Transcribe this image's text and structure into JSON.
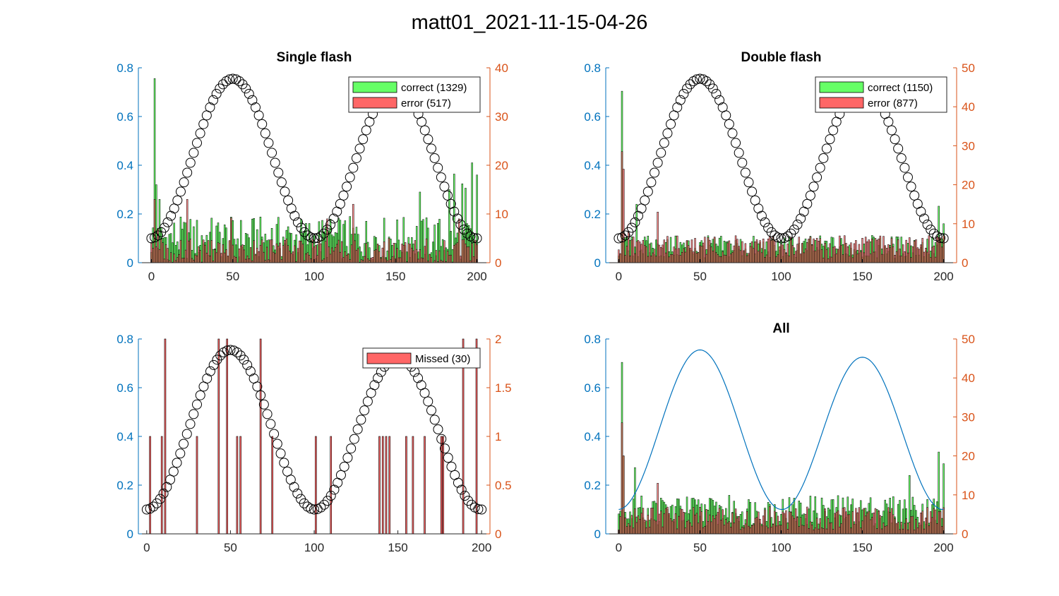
{
  "figure": {
    "title": "matt01_2021-11-15-04-26"
  },
  "colors": {
    "left_axis": "#0072BD",
    "right_axis": "#D95319",
    "correct": "#66FF66",
    "error": "#FF6666",
    "line": "#0072BD",
    "bar_edge": "#000000"
  },
  "chart_data": [
    {
      "id": "single",
      "type": "bar",
      "title": "Single flash",
      "xlim": [
        -8,
        208
      ],
      "xticks": [
        0,
        50,
        100,
        150,
        200
      ],
      "left_ylim": [
        0,
        0.8
      ],
      "left_yticks": [
        "0",
        "0.2",
        "0.4",
        "0.6",
        "0.8"
      ],
      "right_ylim": [
        0,
        40
      ],
      "right_yticks": [
        "0",
        "10",
        "20",
        "30",
        "40"
      ],
      "overlay": "markers",
      "legend_location": "top-right",
      "legend": [
        {
          "label": "correct (1329)",
          "color": "#66FF66"
        },
        {
          "label": "error (517)",
          "color": "#FF6666"
        }
      ],
      "spikes": {
        "correct": [
          [
            2,
            37.8
          ],
          [
            3,
            16
          ],
          [
            5,
            13
          ],
          [
            197,
            20.5
          ],
          [
            200,
            18
          ],
          [
            193,
            15.3
          ],
          [
            191,
            16.2
          ],
          [
            183,
            15
          ],
          [
            165,
            14.5
          ],
          [
            186,
            18.2
          ]
        ],
        "error": [
          [
            2,
            13
          ],
          [
            4,
            7
          ],
          [
            22,
            13
          ],
          [
            49,
            9.2
          ],
          [
            108,
            9
          ],
          [
            124,
            12
          ],
          [
            189,
            9
          ]
        ]
      },
      "base": {
        "correct": 5,
        "correct_amp": 4.5,
        "error": 2.5,
        "error_amp": 2.5
      }
    },
    {
      "id": "double",
      "type": "bar",
      "title": "Double flash",
      "xlim": [
        -8,
        208
      ],
      "xticks": [
        0,
        50,
        100,
        150,
        200
      ],
      "left_ylim": [
        0,
        0.8
      ],
      "left_yticks": [
        "0",
        "0.2",
        "0.4",
        "0.6",
        "0.8"
      ],
      "right_ylim": [
        0,
        50
      ],
      "right_yticks": [
        "0",
        "10",
        "20",
        "30",
        "40",
        "50"
      ],
      "overlay": "markers",
      "legend_location": "top-right",
      "legend": [
        {
          "label": "correct (1150)",
          "color": "#66FF66"
        },
        {
          "label": "error (877)",
          "color": "#FF6666"
        }
      ],
      "spikes": {
        "correct": [
          [
            2,
            44
          ],
          [
            11,
            15
          ],
          [
            197,
            14.5
          ],
          [
            200,
            10
          ]
        ],
        "error": [
          [
            2,
            28.5
          ],
          [
            3,
            24
          ],
          [
            6,
            8
          ],
          [
            24,
            13
          ]
        ]
      },
      "base": {
        "correct": 4,
        "correct_amp": 3,
        "error": 4,
        "error_amp": 3
      }
    },
    {
      "id": "missed",
      "type": "bar",
      "title": "",
      "xlim": [
        -5,
        205
      ],
      "xticks": [
        0,
        50,
        100,
        150,
        200
      ],
      "left_ylim": [
        0,
        0.8
      ],
      "left_yticks": [
        "0",
        "0.2",
        "0.4",
        "0.6",
        "0.8"
      ],
      "right_ylim": [
        0,
        2
      ],
      "right_yticks": [
        "0",
        "0.5",
        "1",
        "1.5",
        "2"
      ],
      "overlay": "markers",
      "legend_location": "top-right",
      "legend": [
        {
          "label": "Missed (30)",
          "color": "#FF6666"
        }
      ],
      "missed": [
        [
          2,
          1
        ],
        [
          9,
          1
        ],
        [
          11,
          2
        ],
        [
          30,
          1
        ],
        [
          43,
          2
        ],
        [
          48,
          2
        ],
        [
          54,
          1
        ],
        [
          56,
          1
        ],
        [
          68,
          2
        ],
        [
          75,
          1
        ],
        [
          101,
          1
        ],
        [
          110,
          1
        ],
        [
          139,
          1
        ],
        [
          141,
          1
        ],
        [
          143,
          1
        ],
        [
          145,
          1
        ],
        [
          155,
          1
        ],
        [
          159,
          1
        ],
        [
          166,
          1
        ],
        [
          176,
          1
        ],
        [
          177,
          1
        ],
        [
          189,
          2
        ],
        [
          197,
          2
        ]
      ]
    },
    {
      "id": "all",
      "type": "bar",
      "title": "All",
      "xlim": [
        -8,
        208
      ],
      "xticks": [
        0,
        50,
        100,
        150,
        200
      ],
      "left_ylim": [
        0,
        0.8
      ],
      "left_yticks": [
        "0",
        "0.2",
        "0.4",
        "0.6",
        "0.8"
      ],
      "right_ylim": [
        0,
        50
      ],
      "right_yticks": [
        "0",
        "10",
        "20",
        "30",
        "40",
        "50"
      ],
      "overlay": "line",
      "legend": [],
      "spikes": {
        "correct": [
          [
            2,
            44
          ],
          [
            3,
            20
          ],
          [
            10,
            17
          ],
          [
            197,
            21
          ],
          [
            200,
            18
          ],
          [
            179,
            15
          ]
        ],
        "error": [
          [
            2,
            28.5
          ],
          [
            3,
            20
          ],
          [
            24,
            13
          ]
        ]
      },
      "base": {
        "correct": 6,
        "correct_amp": 4,
        "error": 4,
        "error_amp": 3
      }
    }
  ]
}
